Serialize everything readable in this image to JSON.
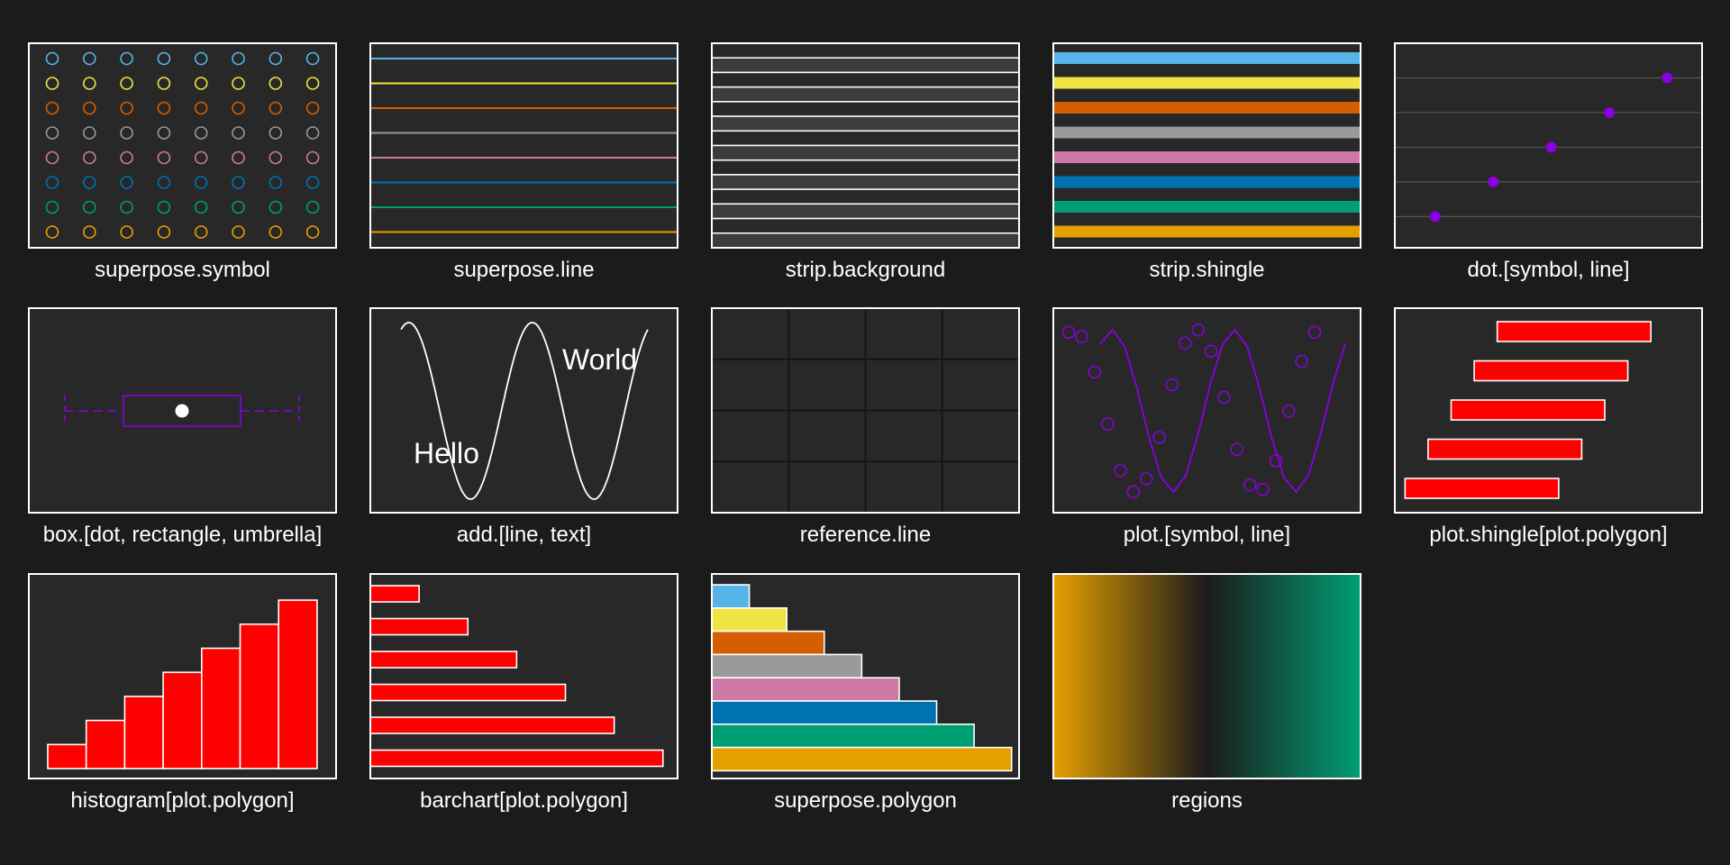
{
  "panels": [
    {
      "label": "superpose.symbol"
    },
    {
      "label": "superpose.line"
    },
    {
      "label": "strip.background"
    },
    {
      "label": "strip.shingle"
    },
    {
      "label": "dot.[symbol, line]"
    },
    {
      "label": "box.[dot, rectangle, umbrella]"
    },
    {
      "label": "add.[line, text]"
    },
    {
      "label": "reference.line"
    },
    {
      "label": "plot.[symbol, line]"
    },
    {
      "label": "plot.shingle[plot.polygon]"
    },
    {
      "label": "histogram[plot.polygon]"
    },
    {
      "label": "barchart[plot.polygon]"
    },
    {
      "label": "superpose.polygon"
    },
    {
      "label": "regions"
    }
  ],
  "colors": {
    "background": "#1b1b1b",
    "panel_bg": "#282828",
    "border": "#ffffff",
    "accent": "#8a00e0",
    "red": "#ff0000",
    "superpose_palette": [
      "#56b4e9",
      "#f0e442",
      "#d55e00",
      "#999999",
      "#cc79a7",
      "#0072b2",
      "#009e73",
      "#e69f00"
    ],
    "strip_bg_a": "#282828",
    "strip_bg_b": "#3c3c3c",
    "regions": [
      "#e69f00",
      "#1b1b1b",
      "#009e73"
    ]
  },
  "chart_data": [
    {
      "type": "scatter",
      "grid": false,
      "symbol": "circle-open",
      "points_per_series": 8,
      "series_count": 8
    },
    {
      "type": "line",
      "grid": false,
      "series_count": 8
    },
    {
      "type": "strip",
      "grid": false,
      "strips": 14
    },
    {
      "type": "strip",
      "grid": false,
      "strips": 8
    },
    {
      "type": "scatter",
      "grid": "horizontal",
      "x": [
        1,
        2,
        3,
        4,
        5
      ],
      "y": [
        1,
        2,
        3,
        4,
        5
      ],
      "xlim": [
        0.3,
        5.6
      ],
      "ylim": [
        0.1,
        6.0
      ]
    },
    {
      "type": "box",
      "grid": false,
      "min": 0,
      "q1": 1,
      "median": 2,
      "q3": 3,
      "max": 4,
      "xlim": [
        -0.5,
        4.5
      ]
    },
    {
      "type": "line",
      "grid": false,
      "function": "cos",
      "x_range": [
        0,
        12.566
      ],
      "texts": [
        {
          "text": "Hello",
          "x": 1.2,
          "y": -0.75
        },
        {
          "text": "World",
          "x": 11.0,
          "y": 0.6
        }
      ]
    },
    {
      "type": "grid",
      "grid": true,
      "cols": 4,
      "rows": 4
    },
    {
      "type": "line",
      "grid": false,
      "function": "cos",
      "with_symbols": true,
      "x_range": [
        0,
        12.566
      ],
      "points": 20
    },
    {
      "type": "bar",
      "grid": false,
      "horizontal": true,
      "intervals": [
        [
          2.0,
          5.0
        ],
        [
          1.55,
          4.55
        ],
        [
          1.1,
          4.1
        ],
        [
          0.65,
          3.65
        ],
        [
          0.2,
          3.2
        ]
      ],
      "xlim": [
        0,
        6.0
      ]
    },
    {
      "type": "bar",
      "grid": false,
      "values": [
        1,
        2,
        3,
        4,
        5,
        6,
        7
      ],
      "ylim": [
        0,
        8.5
      ]
    },
    {
      "type": "bar",
      "grid": false,
      "horizontal": true,
      "values": [
        1,
        2,
        3,
        4,
        5,
        6
      ],
      "xlim": [
        0,
        6.3
      ]
    },
    {
      "type": "bar",
      "grid": false,
      "horizontal": true,
      "values": [
        1,
        2,
        3,
        4,
        5,
        6,
        7,
        8
      ],
      "xlim": [
        0,
        8.2
      ]
    },
    {
      "type": "heatmap",
      "grid": false,
      "gradient": [
        "#e69f00",
        "#1b1b1b",
        "#009e73"
      ]
    }
  ]
}
